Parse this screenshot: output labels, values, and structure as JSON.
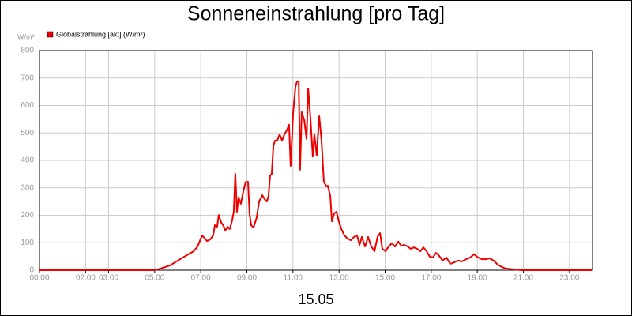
{
  "chart_data": {
    "type": "line",
    "title": "Sonneneinstrahlung [pro Tag]",
    "y_label": "W/m²",
    "x_label": "15.05",
    "xlim": [
      0,
      24
    ],
    "ylim": [
      0,
      800
    ],
    "xticks": [
      {
        "value": 0,
        "label": "00:00"
      },
      {
        "value": 2,
        "label": "02:00"
      },
      {
        "value": 3,
        "label": "03:00"
      },
      {
        "value": 5,
        "label": "05:00"
      },
      {
        "value": 7,
        "label": "07:00"
      },
      {
        "value": 9,
        "label": "09:00"
      },
      {
        "value": 11,
        "label": "11:00"
      },
      {
        "value": 13,
        "label": "13:00"
      },
      {
        "value": 15,
        "label": "15:00"
      },
      {
        "value": 17,
        "label": "17:00"
      },
      {
        "value": 19,
        "label": "19:00"
      },
      {
        "value": 21,
        "label": "21:00"
      },
      {
        "value": 23,
        "label": "23:00"
      }
    ],
    "yticks": [
      0,
      100,
      200,
      300,
      400,
      500,
      600,
      700,
      800
    ],
    "grid": true,
    "legend": "top-left",
    "x": [
      0,
      5.0,
      5.14,
      5.66,
      6.0,
      6.34,
      6.69,
      6.86,
      7.06,
      7.27,
      7.41,
      7.54,
      7.61,
      7.71,
      7.78,
      7.89,
      7.99,
      8.06,
      8.16,
      8.26,
      8.37,
      8.43,
      8.5,
      8.57,
      8.64,
      8.74,
      8.85,
      8.95,
      9.05,
      9.12,
      9.19,
      9.29,
      9.43,
      9.53,
      9.67,
      9.77,
      9.87,
      9.94,
      10.01,
      10.08,
      10.15,
      10.22,
      10.32,
      10.42,
      10.53,
      10.63,
      10.73,
      10.83,
      10.9,
      11.01,
      11.11,
      11.18,
      11.25,
      11.31,
      11.38,
      11.49,
      11.59,
      11.66,
      11.76,
      11.86,
      11.93,
      12.03,
      12.14,
      12.24,
      12.34,
      12.45,
      12.51,
      12.62,
      12.69,
      12.79,
      12.89,
      12.99,
      13.1,
      13.23,
      13.37,
      13.51,
      13.65,
      13.78,
      13.89,
      13.99,
      14.13,
      14.26,
      14.4,
      14.54,
      14.67,
      14.78,
      14.88,
      15.02,
      15.15,
      15.29,
      15.43,
      15.57,
      15.7,
      15.84,
      15.98,
      16.11,
      16.25,
      16.39,
      16.53,
      16.66,
      16.8,
      16.94,
      17.07,
      17.21,
      17.35,
      17.49,
      17.66,
      17.83,
      18.0,
      18.17,
      18.34,
      18.51,
      18.69,
      18.86,
      19.03,
      19.2,
      19.37,
      19.54,
      19.71,
      19.89,
      20.06,
      20.23,
      20.57,
      20.91,
      24
    ],
    "series": [
      {
        "name": "Globalstrahlung [akt] (W/m²)",
        "color": "#ee0000",
        "values": [
          0,
          0,
          3,
          17,
          35,
          52,
          69,
          86,
          127,
          106,
          112,
          127,
          164,
          158,
          201,
          173,
          161,
          144,
          158,
          150,
          184,
          213,
          351,
          213,
          265,
          242,
          288,
          322,
          322,
          201,
          164,
          155,
          193,
          250,
          273,
          259,
          250,
          271,
          345,
          351,
          452,
          472,
          472,
          495,
          472,
          495,
          509,
          530,
          380,
          576,
          668,
          688,
          688,
          366,
          576,
          547,
          478,
          662,
          553,
          414,
          495,
          417,
          561,
          472,
          322,
          305,
          308,
          271,
          178,
          207,
          213,
          178,
          150,
          127,
          115,
          109,
          121,
          127,
          92,
          121,
          86,
          121,
          86,
          69,
          121,
          135,
          78,
          69,
          86,
          98,
          86,
          104,
          89,
          92,
          86,
          78,
          83,
          78,
          69,
          83,
          69,
          49,
          46,
          63,
          52,
          35,
          46,
          23,
          29,
          35,
          32,
          40,
          46,
          58,
          46,
          40,
          40,
          43,
          35,
          20,
          12,
          6,
          3,
          0,
          0
        ]
      }
    ]
  }
}
